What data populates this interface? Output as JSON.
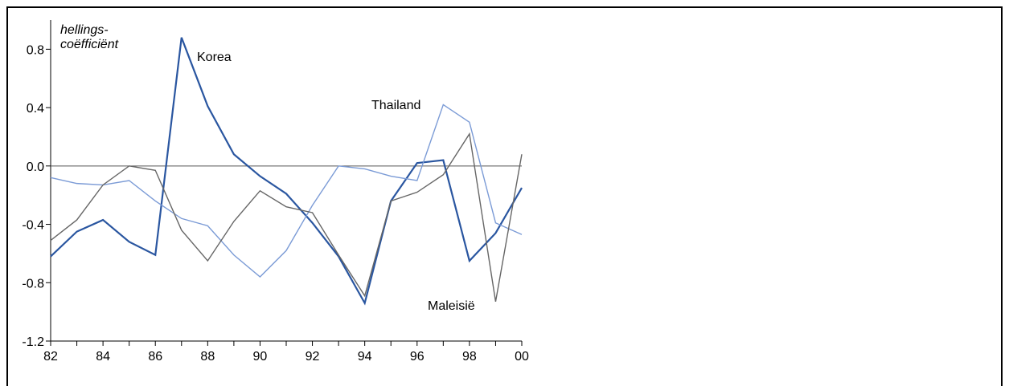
{
  "chart_data": {
    "type": "line",
    "y_label": [
      "hellings-",
      "coëfficiënt"
    ],
    "categories": [
      "82",
      null,
      "84",
      null,
      "86",
      null,
      "88",
      null,
      "90",
      null,
      "92",
      null,
      "94",
      null,
      "96",
      null,
      "98",
      null,
      "00"
    ],
    "series": [
      {
        "name": "Korea",
        "color": "#2a56a0",
        "values": [
          -0.62,
          -0.45,
          -0.37,
          -0.52,
          -0.61,
          0.88,
          0.41,
          0.08,
          -0.07,
          -0.19,
          -0.39,
          -0.62,
          -0.94,
          -0.24,
          0.02,
          0.04,
          -0.65,
          -0.46,
          -0.15
        ]
      },
      {
        "name": "Thailand",
        "color": "#7b9bd6",
        "values": [
          -0.08,
          -0.12,
          -0.13,
          -0.1,
          -0.24,
          -0.36,
          -0.41,
          -0.61,
          -0.76,
          -0.58,
          -0.27,
          0.0,
          -0.02,
          -0.07,
          -0.1,
          0.42,
          0.3,
          -0.39,
          -0.47
        ]
      },
      {
        "name": "Maleisië",
        "color": "#666666",
        "values": [
          -0.51,
          -0.37,
          -0.13,
          0.0,
          -0.03,
          -0.44,
          -0.65,
          -0.38,
          -0.17,
          -0.28,
          -0.32,
          -0.61,
          -0.89,
          -0.24,
          -0.18,
          -0.06,
          0.22,
          -0.93,
          0.08
        ]
      }
    ],
    "ylim": [
      -1.2,
      1.0
    ],
    "yticks": [
      -1.2,
      -0.8,
      -0.4,
      {
        "value": 0,
        "label": "0.0"
      },
      0.4,
      0.8
    ]
  }
}
